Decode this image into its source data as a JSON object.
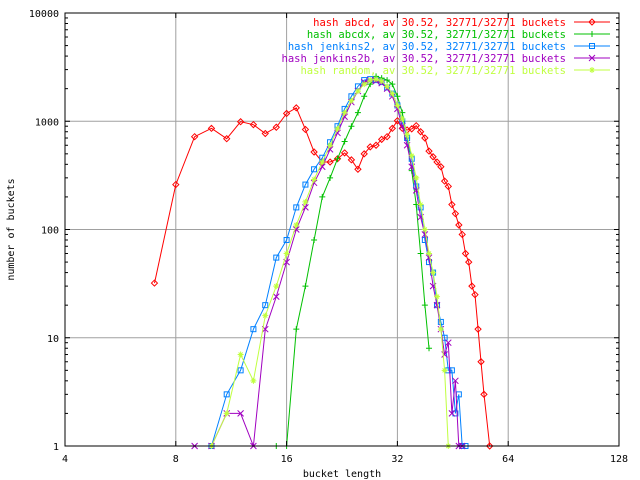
{
  "chart_data": {
    "type": "line",
    "xlabel": "bucket length",
    "ylabel": "number of buckets",
    "xscale": "log2",
    "yscale": "log10",
    "xlim": [
      4,
      128
    ],
    "ylim": [
      1,
      10000
    ],
    "x_ticks": [
      4,
      8,
      16,
      32,
      64,
      128
    ],
    "y_ticks": [
      1,
      10,
      100,
      1000,
      10000
    ],
    "grid": true,
    "legend_position": "top-right",
    "series": [
      {
        "name": "hash abcd, av 30.52, 32771/32771 buckets",
        "color": "#ff0000",
        "marker": "diamond",
        "points": [
          [
            7,
            32
          ],
          [
            8,
            260
          ],
          [
            9,
            720
          ],
          [
            10,
            860
          ],
          [
            11,
            690
          ],
          [
            12,
            990
          ],
          [
            13,
            930
          ],
          [
            14,
            770
          ],
          [
            15,
            880
          ],
          [
            16,
            1180
          ],
          [
            17,
            1330
          ],
          [
            18,
            840
          ],
          [
            19,
            520
          ],
          [
            20,
            420
          ],
          [
            21,
            420
          ],
          [
            22,
            450
          ],
          [
            23,
            510
          ],
          [
            24,
            440
          ],
          [
            25,
            360
          ],
          [
            26,
            500
          ],
          [
            27,
            580
          ],
          [
            28,
            600
          ],
          [
            29,
            680
          ],
          [
            30,
            720
          ],
          [
            31,
            860
          ],
          [
            32,
            1010
          ],
          [
            33,
            860
          ],
          [
            34,
            830
          ],
          [
            35,
            850
          ],
          [
            36,
            910
          ],
          [
            37,
            800
          ],
          [
            38,
            700
          ],
          [
            39,
            530
          ],
          [
            40,
            470
          ],
          [
            41,
            420
          ],
          [
            42,
            380
          ],
          [
            43,
            280
          ],
          [
            44,
            250
          ],
          [
            45,
            170
          ],
          [
            46,
            140
          ],
          [
            47,
            110
          ],
          [
            48,
            90
          ],
          [
            49,
            60
          ],
          [
            50,
            50
          ],
          [
            51,
            30
          ],
          [
            52,
            25
          ],
          [
            53,
            12
          ],
          [
            54,
            6
          ],
          [
            55,
            3
          ],
          [
            57,
            1
          ]
        ]
      },
      {
        "name": "hash abcdx, av 30.52, 32771/32771 buckets",
        "color": "#00c000",
        "marker": "plus",
        "points": [
          [
            15,
            1
          ],
          [
            16,
            1
          ],
          [
            17,
            12
          ],
          [
            18,
            30
          ],
          [
            19,
            80
          ],
          [
            20,
            200
          ],
          [
            21,
            300
          ],
          [
            22,
            450
          ],
          [
            23,
            650
          ],
          [
            24,
            900
          ],
          [
            25,
            1200
          ],
          [
            26,
            1700
          ],
          [
            27,
            2200
          ],
          [
            28,
            2600
          ],
          [
            29,
            2500
          ],
          [
            30,
            2400
          ],
          [
            31,
            2200
          ],
          [
            32,
            1700
          ],
          [
            33,
            1200
          ],
          [
            34,
            700
          ],
          [
            35,
            350
          ],
          [
            36,
            170
          ],
          [
            37,
            60
          ],
          [
            38,
            20
          ],
          [
            39,
            8
          ]
        ]
      },
      {
        "name": "hash jenkins2, av 30.52, 32771/32771 buckets",
        "color": "#0080ff",
        "marker": "square",
        "points": [
          [
            10,
            1
          ],
          [
            11,
            3
          ],
          [
            12,
            5
          ],
          [
            13,
            12
          ],
          [
            14,
            20
          ],
          [
            15,
            55
          ],
          [
            16,
            80
          ],
          [
            17,
            160
          ],
          [
            18,
            260
          ],
          [
            19,
            360
          ],
          [
            20,
            460
          ],
          [
            21,
            640
          ],
          [
            22,
            900
          ],
          [
            23,
            1300
          ],
          [
            24,
            1700
          ],
          [
            25,
            2100
          ],
          [
            26,
            2400
          ],
          [
            27,
            2450
          ],
          [
            28,
            2400
          ],
          [
            29,
            2300
          ],
          [
            30,
            2050
          ],
          [
            31,
            1800
          ],
          [
            32,
            1400
          ],
          [
            33,
            1000
          ],
          [
            34,
            700
          ],
          [
            35,
            450
          ],
          [
            36,
            250
          ],
          [
            37,
            160
          ],
          [
            38,
            80
          ],
          [
            39,
            50
          ],
          [
            40,
            40
          ],
          [
            41,
            20
          ],
          [
            42,
            14
          ],
          [
            43,
            10
          ],
          [
            44,
            5
          ],
          [
            45,
            5
          ],
          [
            46,
            2
          ],
          [
            47,
            3
          ],
          [
            48,
            1
          ],
          [
            49,
            1
          ]
        ]
      },
      {
        "name": "hash jenkins2b, av 30.52, 32771/32771 buckets",
        "color": "#a000c0",
        "marker": "cross",
        "points": [
          [
            9,
            1
          ],
          [
            10,
            1
          ],
          [
            11,
            2
          ],
          [
            12,
            2
          ],
          [
            13,
            1
          ],
          [
            14,
            12
          ],
          [
            15,
            24
          ],
          [
            16,
            50
          ],
          [
            17,
            100
          ],
          [
            18,
            160
          ],
          [
            19,
            270
          ],
          [
            20,
            380
          ],
          [
            21,
            550
          ],
          [
            22,
            780
          ],
          [
            23,
            1100
          ],
          [
            24,
            1500
          ],
          [
            25,
            1900
          ],
          [
            26,
            2300
          ],
          [
            27,
            2400
          ],
          [
            28,
            2350
          ],
          [
            29,
            2250
          ],
          [
            30,
            2000
          ],
          [
            31,
            1700
          ],
          [
            32,
            1300
          ],
          [
            33,
            900
          ],
          [
            34,
            600
          ],
          [
            35,
            380
          ],
          [
            36,
            230
          ],
          [
            37,
            130
          ],
          [
            38,
            90
          ],
          [
            39,
            55
          ],
          [
            40,
            30
          ],
          [
            41,
            20
          ],
          [
            42,
            12
          ],
          [
            43,
            7
          ],
          [
            44,
            9
          ],
          [
            45,
            2
          ],
          [
            46,
            4
          ],
          [
            47,
            1
          ],
          [
            48,
            1
          ]
        ]
      },
      {
        "name": "hash random, av 30.52, 32771/32771 buckets",
        "color": "#c0ff40",
        "marker": "star",
        "points": [
          [
            10,
            1
          ],
          [
            11,
            2
          ],
          [
            12,
            7
          ],
          [
            13,
            4
          ],
          [
            14,
            16
          ],
          [
            15,
            30
          ],
          [
            16,
            60
          ],
          [
            17,
            110
          ],
          [
            18,
            180
          ],
          [
            19,
            290
          ],
          [
            20,
            420
          ],
          [
            21,
            600
          ],
          [
            22,
            850
          ],
          [
            23,
            1200
          ],
          [
            24,
            1550
          ],
          [
            25,
            1900
          ],
          [
            26,
            2200
          ],
          [
            27,
            2400
          ],
          [
            28,
            2450
          ],
          [
            29,
            2350
          ],
          [
            30,
            2100
          ],
          [
            31,
            1800
          ],
          [
            32,
            1400
          ],
          [
            33,
            1050
          ],
          [
            34,
            750
          ],
          [
            35,
            480
          ],
          [
            36,
            300
          ],
          [
            37,
            170
          ],
          [
            38,
            100
          ],
          [
            39,
            60
          ],
          [
            40,
            40
          ],
          [
            41,
            24
          ],
          [
            42,
            12
          ],
          [
            43,
            5
          ],
          [
            44,
            1
          ]
        ]
      }
    ]
  }
}
